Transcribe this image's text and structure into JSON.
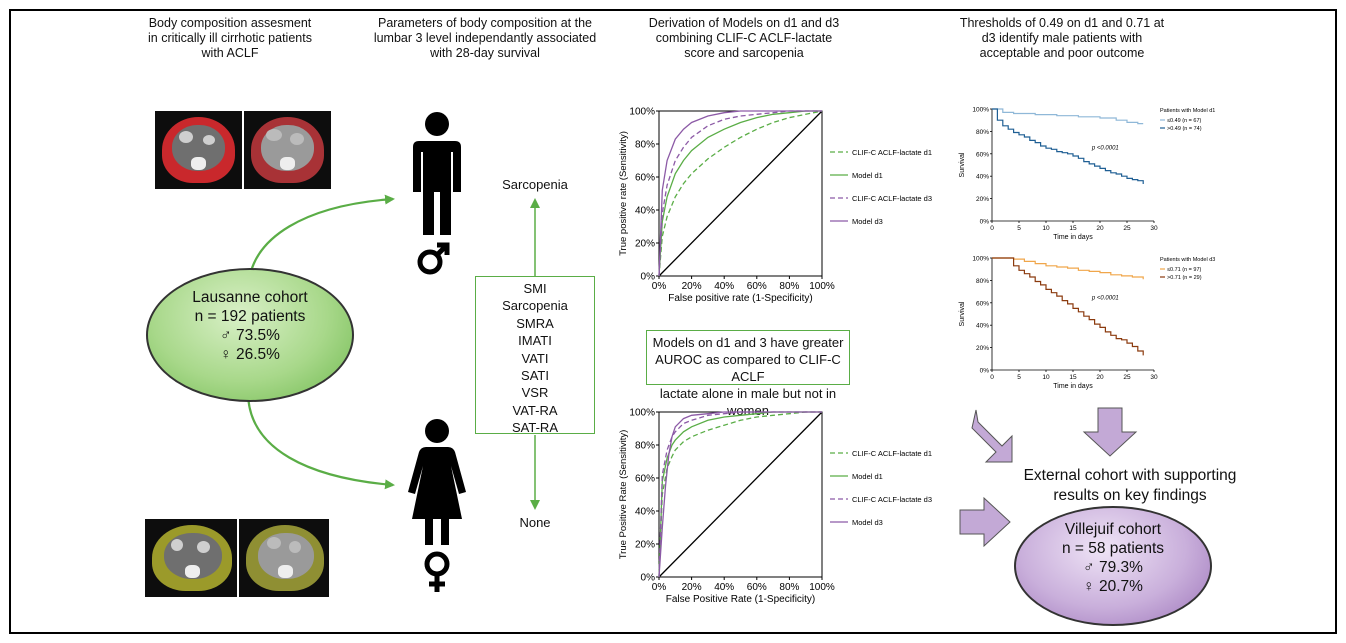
{
  "headings": {
    "col1": [
      "Body composition assesment",
      "in critically ill cirrhotic patients",
      "with ACLF"
    ],
    "col2": [
      "Parameters of body composition at the",
      "lumbar 3 level independantly associated",
      "with 28-day survival"
    ],
    "col3": [
      "Derivation of Models on d1 and d3",
      "combining CLIF-C ACLF-lactate",
      "score and sarcopenia"
    ],
    "col4": [
      "Thresholds of 0.49 on d1 and 0.71 at",
      "d3 identify male patients with",
      "acceptable and poor outcome"
    ]
  },
  "lausanne": {
    "name": "Lausanne cohort",
    "n": "n = 192 patients",
    "male": "♂ 73.5%",
    "female": "♀ 26.5%"
  },
  "parameters": {
    "top_label": "Sarcopenia",
    "bottom_label": "None",
    "items": [
      "SMI",
      "Sarcopenia",
      "SMRA",
      "IMATI",
      "VATI",
      "SATI",
      "VSR",
      "VAT-RA",
      "SAT-RA"
    ]
  },
  "auroc_message": [
    "Models on d1 and 3 have greater",
    "AUROC as compared to CLIF-C ACLF",
    "lactate alone in male but not in women"
  ],
  "external": {
    "text": [
      "External cohort with supporting",
      "results on key findings"
    ],
    "name": "Villejuif cohort",
    "n": "n = 58 patients",
    "male": "♂ 79.3%",
    "female": "♀ 20.7%"
  },
  "colors": {
    "green": "#5aad46",
    "green_fill": "#6cc35a",
    "purple": "#8c5aa6",
    "purple_fill": "#a77fc0",
    "arrow_purple": "#c3a9d6",
    "km_light_blue": "#8fb8d8",
    "km_dark_blue": "#1f5f94",
    "km_orange": "#f0a64a",
    "km_brown": "#8b3a0e"
  },
  "chart_data": [
    {
      "type": "line",
      "ylabel": "True positive rate (Sensitivity)",
      "xlabel": "False positive rate (1-Specificity)",
      "xlim": [
        0,
        100
      ],
      "ylim": [
        0,
        100
      ],
      "xticks": [
        "0%",
        "20%",
        "40%",
        "60%",
        "80%",
        "100%"
      ],
      "yticks": [
        "0%",
        "20%",
        "40%",
        "60%",
        "80%",
        "100%"
      ],
      "legend_position": "right",
      "series": [
        {
          "name": "CLIF-C ACLF-lactate d1",
          "color": "#5aad46",
          "dash": true,
          "x": [
            0,
            2,
            5,
            10,
            15,
            20,
            30,
            40,
            50,
            60,
            70,
            80,
            90,
            100
          ],
          "y": [
            0,
            24,
            36,
            48,
            56,
            62,
            71,
            78,
            84,
            89,
            93,
            96,
            98,
            100
          ]
        },
        {
          "name": "Model d1",
          "color": "#5aad46",
          "dash": false,
          "x": [
            0,
            2,
            5,
            10,
            15,
            20,
            30,
            40,
            50,
            60,
            70,
            80,
            90,
            100
          ],
          "y": [
            0,
            33,
            48,
            62,
            70,
            76,
            84,
            89,
            93,
            96,
            98,
            99,
            100,
            100
          ]
        },
        {
          "name": "CLIF-C ACLF-lactate d3",
          "color": "#8c5aa6",
          "dash": true,
          "x": [
            0,
            2,
            5,
            10,
            15,
            20,
            30,
            40,
            50,
            60,
            70,
            80,
            90,
            100
          ],
          "y": [
            0,
            38,
            55,
            70,
            78,
            84,
            91,
            95,
            97,
            98,
            99,
            100,
            100,
            100
          ]
        },
        {
          "name": "Model d3",
          "color": "#8c5aa6",
          "dash": false,
          "x": [
            0,
            2,
            5,
            10,
            15,
            20,
            30,
            40,
            50,
            60,
            70,
            80,
            90,
            100
          ],
          "y": [
            0,
            52,
            70,
            83,
            89,
            93,
            97,
            99,
            100,
            100,
            100,
            100,
            100,
            100
          ]
        }
      ]
    },
    {
      "type": "line",
      "ylabel": "True Positive Rate (Sensitivity)",
      "xlabel": "False Positive Rate (1-Specificity)",
      "xlim": [
        0,
        100
      ],
      "ylim": [
        0,
        100
      ],
      "xticks": [
        "0%",
        "20%",
        "40%",
        "60%",
        "80%",
        "100%"
      ],
      "yticks": [
        "0%",
        "20%",
        "40%",
        "60%",
        "80%",
        "100%"
      ],
      "legend_position": "right",
      "series": [
        {
          "name": "CLIF-C ACLF-lactate d1",
          "color": "#5aad46",
          "dash": true,
          "x": [
            0,
            2,
            5,
            8,
            10,
            15,
            20,
            30,
            40,
            50,
            60,
            70,
            80,
            90,
            100
          ],
          "y": [
            0,
            50,
            66,
            73,
            77,
            82,
            85,
            89,
            92,
            95,
            97,
            98,
            99,
            100,
            100
          ]
        },
        {
          "name": "Model d1",
          "color": "#5aad46",
          "dash": false,
          "x": [
            0,
            2,
            5,
            8,
            10,
            15,
            20,
            30,
            40,
            50,
            60,
            70,
            80,
            90,
            100
          ],
          "y": [
            0,
            58,
            72,
            80,
            83,
            88,
            91,
            95,
            97,
            98,
            99,
            100,
            100,
            100,
            100
          ]
        },
        {
          "name": "CLIF-C ACLF-lactate d3",
          "color": "#8c5aa6",
          "dash": true,
          "x": [
            0,
            2,
            5,
            8,
            10,
            15,
            20,
            30,
            40,
            50,
            60,
            70,
            80,
            90,
            100
          ],
          "y": [
            0,
            62,
            77,
            85,
            88,
            93,
            95,
            98,
            99,
            100,
            100,
            100,
            100,
            100,
            100
          ]
        },
        {
          "name": "Model d3",
          "color": "#8c5aa6",
          "dash": false,
          "x": [
            0,
            2,
            4,
            6,
            8,
            10,
            15,
            20,
            30,
            40,
            50,
            60,
            80,
            100
          ],
          "y": [
            0,
            30,
            55,
            74,
            85,
            91,
            96,
            98,
            99,
            100,
            100,
            100,
            100,
            100
          ]
        }
      ]
    },
    {
      "type": "line",
      "ylabel": "Survival",
      "xlabel": "Time in days",
      "xlim": [
        0,
        30
      ],
      "ylim": [
        0,
        100
      ],
      "xticks": [
        "0",
        "5",
        "10",
        "15",
        "20",
        "25",
        "30"
      ],
      "yticks": [
        "0%",
        "20%",
        "40%",
        "60%",
        "80%",
        "100%"
      ],
      "legend_title": "Patients with Model d1",
      "annotation": "p <0.0001",
      "series": [
        {
          "name": "≤0.49 (n = 67)",
          "color": "#8fb8d8",
          "x": [
            0,
            2,
            4,
            8,
            12,
            16,
            20,
            23,
            25,
            27,
            28
          ],
          "y": [
            100,
            97,
            96,
            95,
            94,
            93,
            92,
            90,
            88,
            87,
            87
          ]
        },
        {
          "name": ">0.49 (n = 74)",
          "color": "#1f5f94",
          "x": [
            0,
            1,
            2,
            3,
            4,
            5,
            6,
            7,
            8,
            9,
            10,
            11,
            12,
            13,
            14,
            15,
            16,
            17,
            18,
            19,
            20,
            21,
            22,
            23,
            24,
            25,
            26,
            27,
            28
          ],
          "y": [
            100,
            90,
            85,
            82,
            79,
            77,
            75,
            72,
            70,
            67,
            65,
            64,
            62,
            61,
            60,
            58,
            56,
            53,
            51,
            49,
            47,
            45,
            43,
            42,
            40,
            38,
            37,
            36,
            33
          ]
        }
      ]
    },
    {
      "type": "line",
      "ylabel": "Survival",
      "xlabel": "Time in days",
      "xlim": [
        0,
        30
      ],
      "ylim": [
        0,
        100
      ],
      "xticks": [
        "0",
        "5",
        "10",
        "15",
        "20",
        "25",
        "30"
      ],
      "yticks": [
        "0%",
        "20%",
        "40%",
        "60%",
        "80%",
        "100%"
      ],
      "legend_title": "Patients with Model d3",
      "annotation": "p <0.0001",
      "series": [
        {
          "name": "≤0.71 (n = 97)",
          "color": "#f0a64a",
          "x": [
            0,
            4,
            6,
            8,
            10,
            12,
            14,
            16,
            18,
            20,
            22,
            24,
            26,
            28
          ],
          "y": [
            100,
            99,
            97,
            95,
            93,
            92,
            91,
            89,
            88,
            87,
            85,
            84,
            83,
            81
          ]
        },
        {
          "name": ">0.71 (n = 29)",
          "color": "#8b3a0e",
          "x": [
            0,
            3,
            4,
            5,
            6,
            7,
            8,
            9,
            10,
            11,
            12,
            13,
            14,
            15,
            16,
            17,
            18,
            19,
            20,
            21,
            22,
            23,
            24,
            25,
            26,
            27,
            28
          ],
          "y": [
            100,
            100,
            93,
            89,
            86,
            83,
            79,
            76,
            72,
            69,
            66,
            62,
            59,
            55,
            52,
            48,
            45,
            41,
            38,
            34,
            31,
            28,
            27,
            24,
            21,
            17,
            13
          ]
        }
      ]
    }
  ]
}
